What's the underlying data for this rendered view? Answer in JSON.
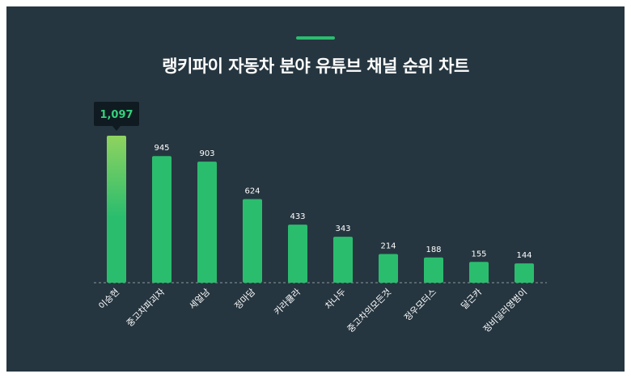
{
  "colors": {
    "background": "#263640",
    "bar_top": "#8fd35f",
    "bar_main": "#2bbd6e",
    "accent": "#2bbd6e",
    "tooltip_bg": "#0f1b21",
    "tooltip_text": "#35d27c"
  },
  "chart_data": {
    "type": "bar",
    "title": "랭키파이 자동차 분야 유튜브 채널 순위 차트",
    "categories": [
      "이승현",
      "중고차파괴자",
      "세얼남",
      "정마담",
      "카라큘라",
      "차나두",
      "중고차의모든것",
      "정우모터스",
      "달근카",
      "정비딜러영범이"
    ],
    "values": [
      1097,
      945,
      903,
      624,
      433,
      343,
      214,
      188,
      155,
      144
    ],
    "value_labels": [
      "1,097",
      "945",
      "903",
      "624",
      "433",
      "343",
      "214",
      "188",
      "155",
      "144"
    ],
    "highlight": {
      "index": 0,
      "label": "1,097"
    },
    "ylim": [
      0,
      1200
    ],
    "grid": false,
    "baseline": "dashed"
  }
}
